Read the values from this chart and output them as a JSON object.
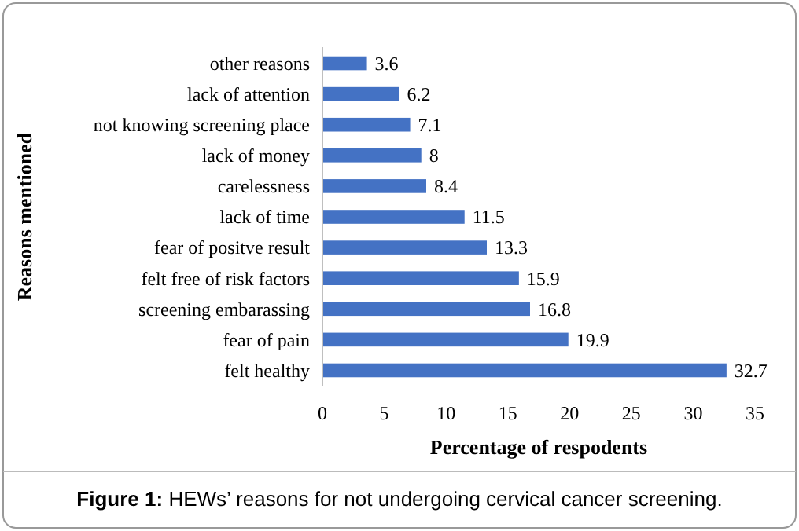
{
  "chart_data": {
    "type": "bar",
    "orientation": "horizontal",
    "xlabel": "Percentage of respodents",
    "ylabel": "Reasons mentioned",
    "categories": [
      "other reasons",
      "lack of attention",
      "not knowing screening place",
      "lack of money",
      "carelessness",
      "lack of time",
      "fear of positve result",
      "felt free of risk factors",
      "screening embarassing",
      "fear of pain",
      "felt healthy"
    ],
    "values": [
      3.6,
      6.2,
      7.1,
      8,
      8.4,
      11.5,
      13.3,
      15.9,
      16.8,
      19.9,
      32.7
    ],
    "color": "#4472c4",
    "xlim": [
      0,
      35
    ],
    "xticks": [
      0,
      5,
      10,
      15,
      20,
      25,
      30,
      35
    ],
    "data_labels": true,
    "grid": false,
    "annotations": [
      "Figure 1: HEWs’ reasons for not undergoing cervical cancer screening."
    ]
  }
}
